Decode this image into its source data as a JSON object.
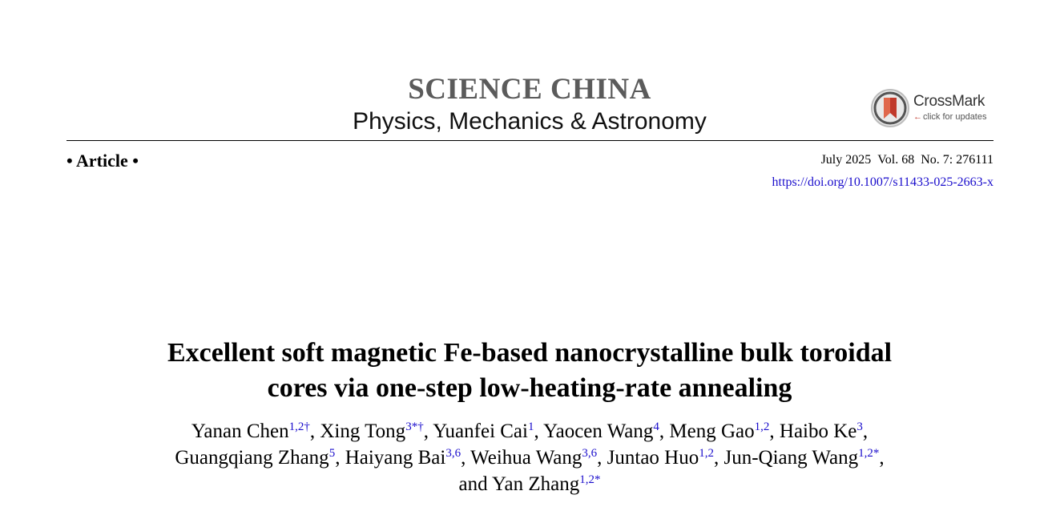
{
  "journal": {
    "name": "SCIENCE CHINA",
    "section": "Physics, Mechanics & Astronomy"
  },
  "crossmark": {
    "name": "CrossMark",
    "tagline": "click for updates",
    "icon": "crossmark-icon"
  },
  "article": {
    "type": "• Article •",
    "date": "July 2025",
    "volume": "Vol. 68",
    "issue": "No. 7: 276111",
    "doi": "https://doi.org/10.1007/s11433-025-2663-x"
  },
  "title_lines": [
    "Excellent soft magnetic Fe-based nanocrystalline bulk toroidal",
    "cores via one-step low-heating-rate annealing"
  ],
  "author_lines": [
    [
      {
        "name": "Yanan Chen",
        "aff": "1,2†",
        "sep": ", "
      },
      {
        "name": "Xing Tong",
        "aff": "3*†",
        "sep": ", "
      },
      {
        "name": "Yuanfei Cai",
        "aff": "1",
        "sep": ", "
      },
      {
        "name": "Yaocen Wang",
        "aff": "4",
        "sep": ", "
      },
      {
        "name": "Meng Gao",
        "aff": "1,2",
        "sep": ", "
      },
      {
        "name": "Haibo Ke",
        "aff": "3",
        "sep": ","
      }
    ],
    [
      {
        "name": "Guangqiang Zhang",
        "aff": "5",
        "sep": ", "
      },
      {
        "name": "Haiyang Bai",
        "aff": "3,6",
        "sep": ", "
      },
      {
        "name": "Weihua Wang",
        "aff": "3,6",
        "sep": ", "
      },
      {
        "name": "Juntao Huo",
        "aff": "1,2",
        "sep": ", "
      },
      {
        "name": "Jun-Qiang Wang",
        "aff": "1,2*",
        "sep": ","
      }
    ],
    [
      {
        "name": "and Yan Zhang",
        "aff": "1,2*",
        "sep": ""
      }
    ]
  ],
  "colors": {
    "journal_gray": "#5b5b5b",
    "link_blue": "#1a0dcc",
    "crossmark_red": "#c0392b"
  }
}
